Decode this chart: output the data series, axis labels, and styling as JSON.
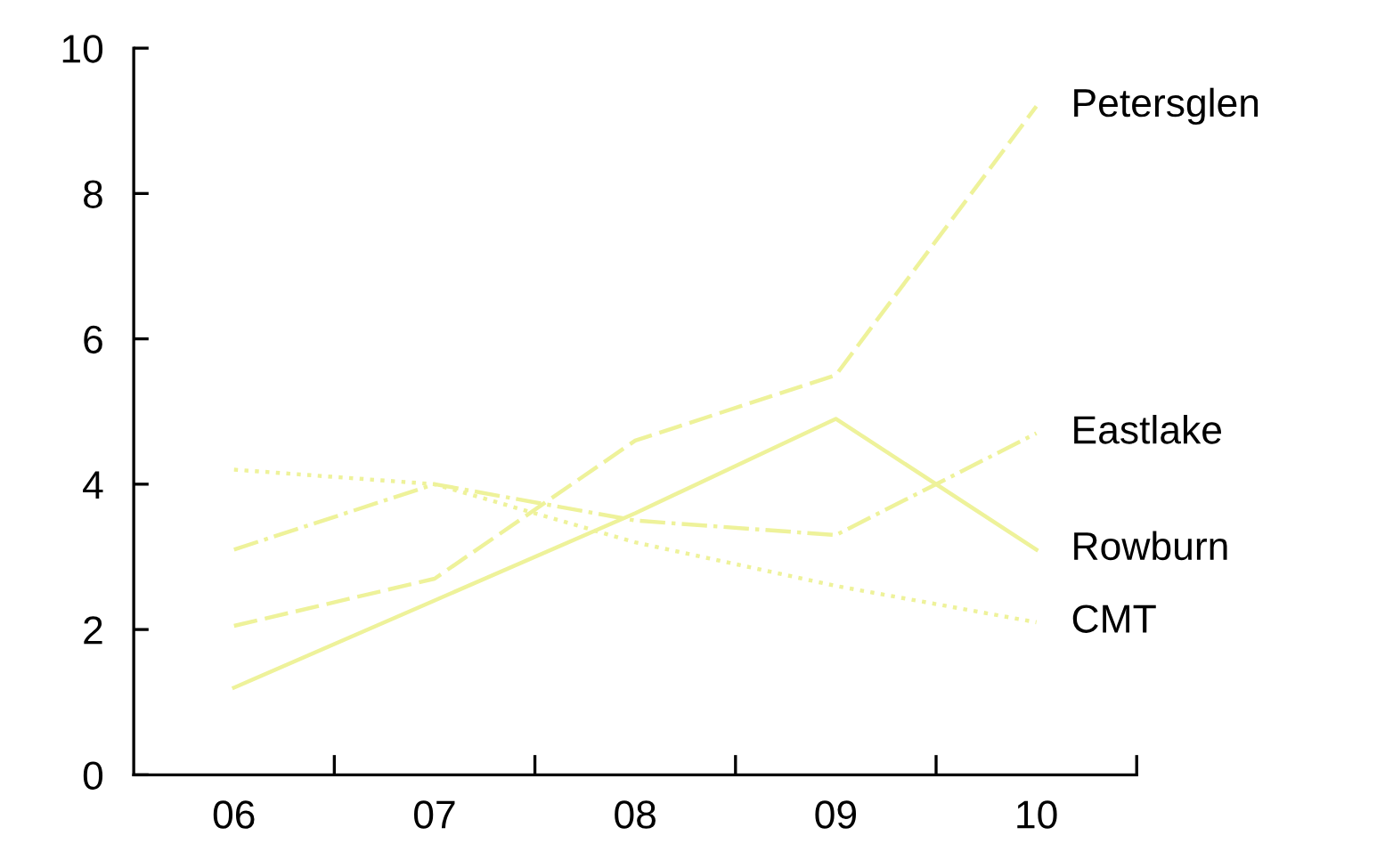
{
  "chart_data": {
    "type": "line",
    "categories": [
      "06",
      "07",
      "08",
      "09",
      "10"
    ],
    "series": [
      {
        "name": "Petersglen",
        "color": "#eef29a",
        "line_style": "longdash",
        "values": [
          2.05,
          2.7,
          4.6,
          5.5,
          9.2
        ]
      },
      {
        "name": "Eastlake",
        "color": "#eef29a",
        "line_style": "dashdot",
        "values": [
          3.1,
          4.0,
          3.5,
          3.3,
          4.7
        ]
      },
      {
        "name": "Rowburn",
        "color": "#eef29a",
        "line_style": "solid",
        "values": [
          1.2,
          2.4,
          3.6,
          4.9,
          3.1
        ]
      },
      {
        "name": "CMT",
        "color": "#eef29a",
        "line_style": "dotted",
        "values": [
          4.2,
          4.0,
          3.2,
          2.6,
          2.1
        ]
      }
    ],
    "ylim": [
      0,
      10
    ],
    "yticks": [
      0,
      2,
      4,
      6,
      8,
      10
    ],
    "grid": false,
    "legend": false,
    "marker": "none"
  }
}
